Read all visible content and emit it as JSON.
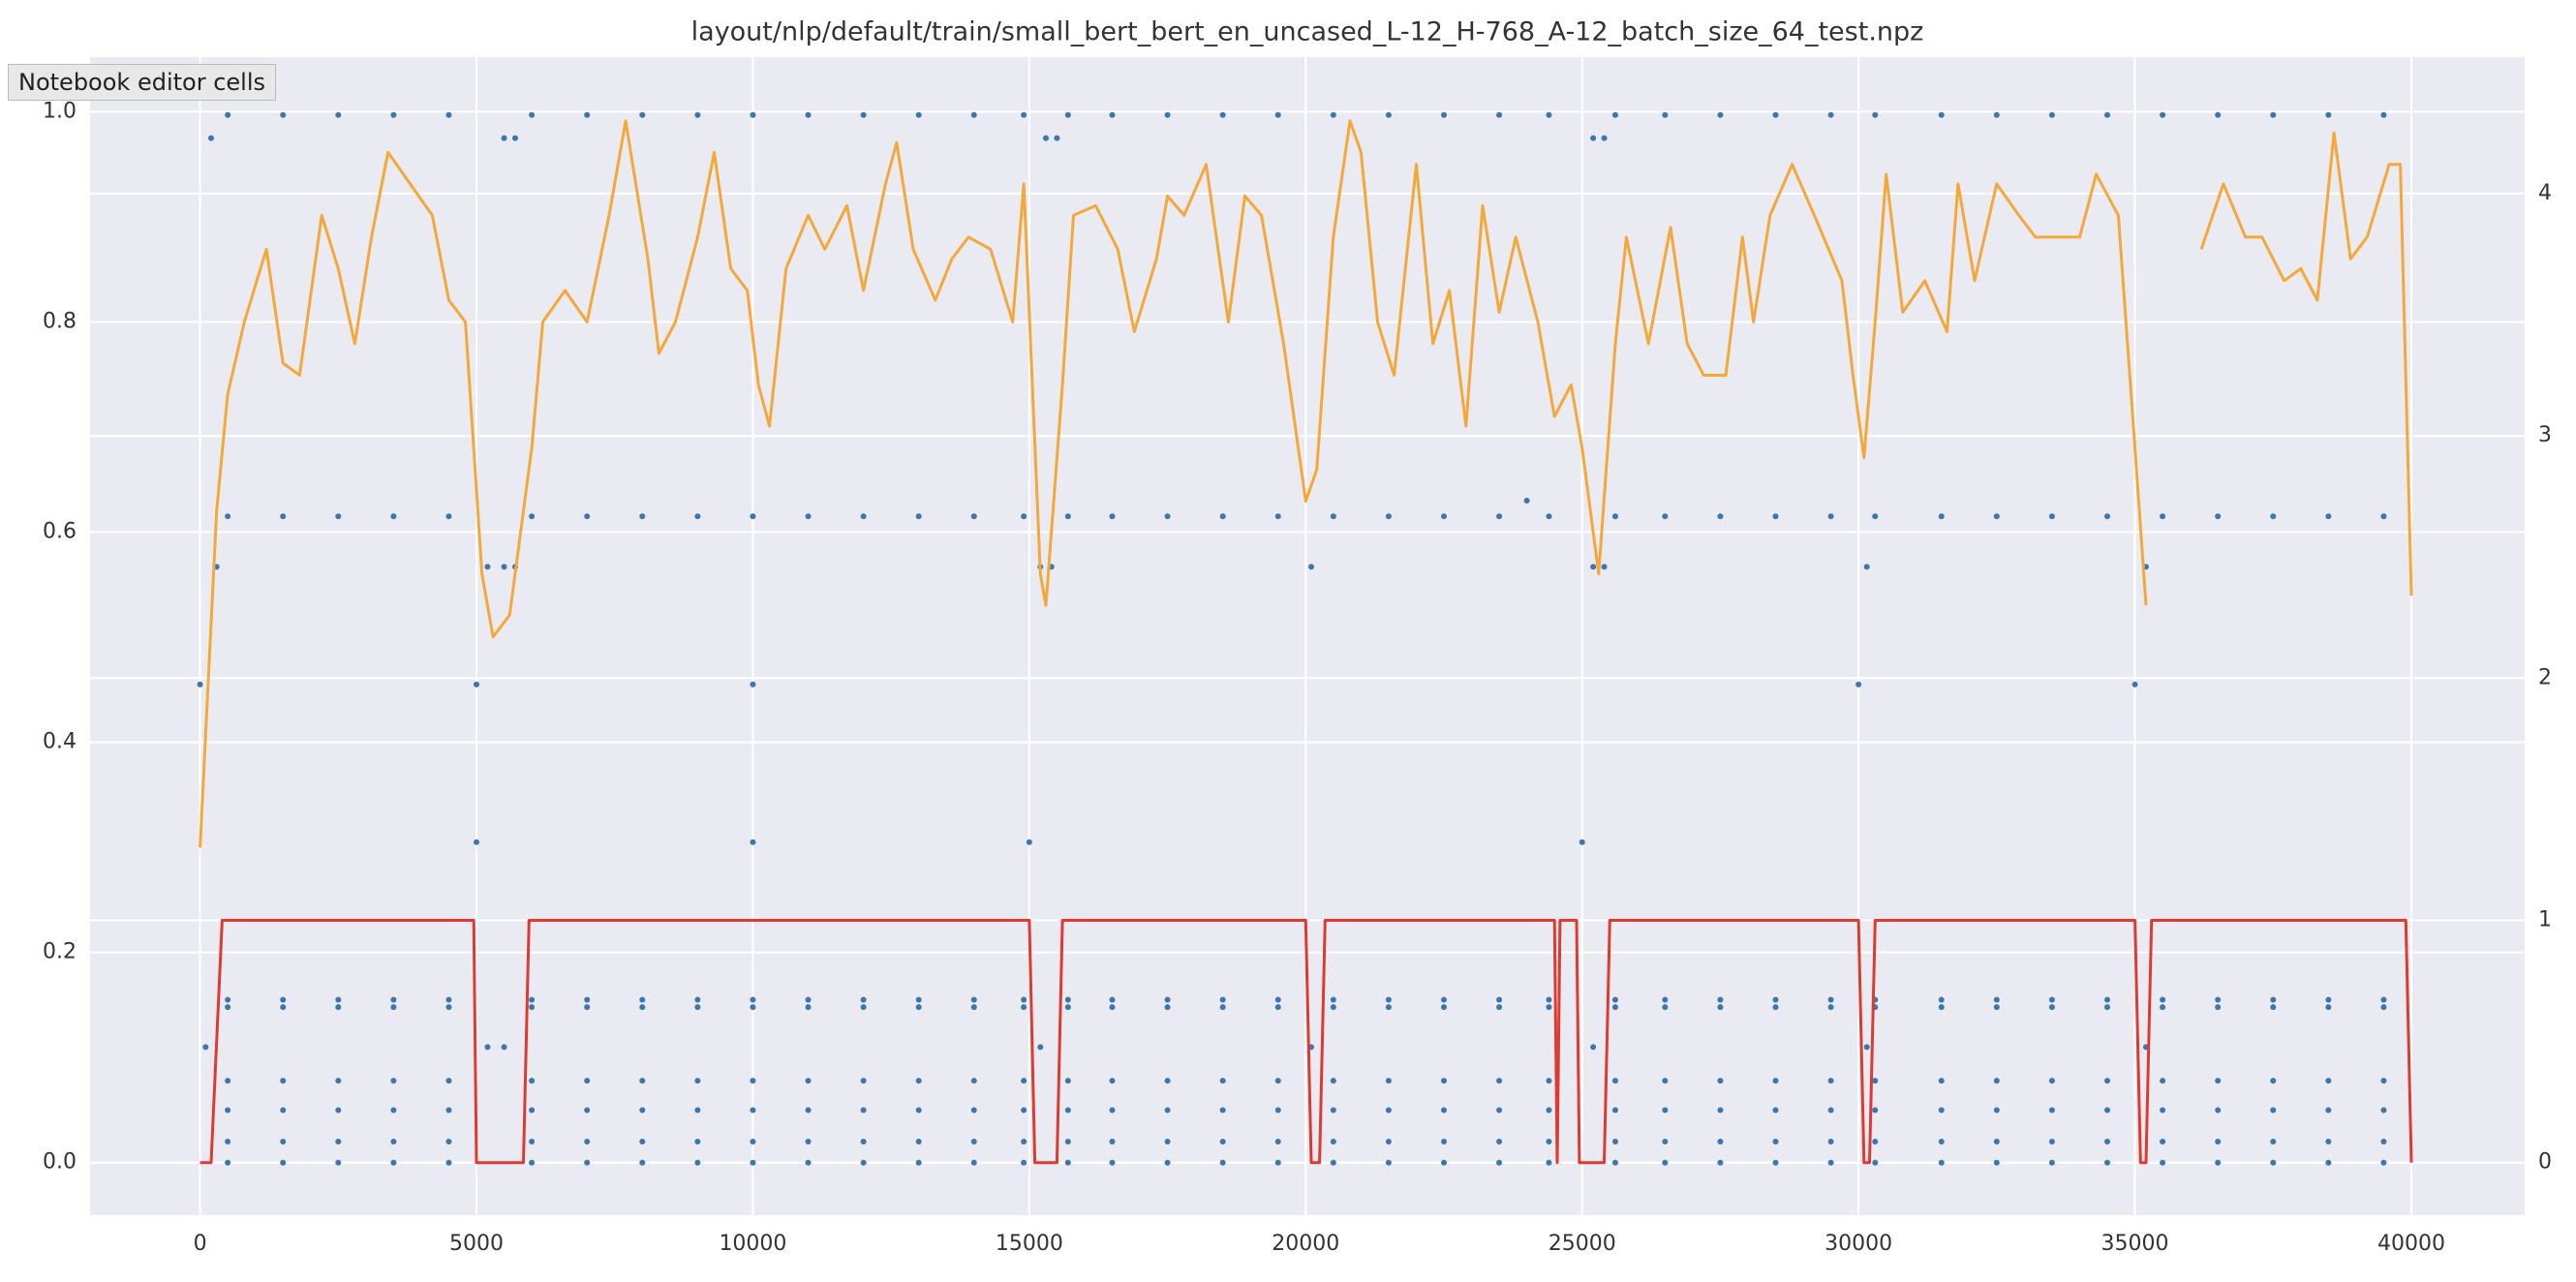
{
  "tooltip": "Notebook editor cells",
  "chart_data": {
    "type": "scatter",
    "title": "layout/nlp/default/train/small_bert_bert_en_uncased_L-12_H-768_A-12_batch_size_64_test.npz",
    "xlim": [
      -1990,
      42050
    ],
    "ylim": [
      -0.05,
      1.052
    ],
    "y2lim": [
      -0.217,
      4.563
    ],
    "xticks": [
      0,
      5000,
      10000,
      15000,
      20000,
      25000,
      30000,
      35000,
      40000
    ],
    "yticks": [
      {
        "value": 0,
        "label": "0.0"
      },
      0.2,
      0.4,
      0.6,
      0.8,
      {
        "value": 1,
        "label": "1.0"
      }
    ],
    "y2ticks": [
      0,
      1,
      2,
      3,
      4
    ],
    "grid": true,
    "series": [
      {
        "color": "#3a76b0",
        "x": [
          500,
          1500,
          2500,
          3500,
          4500,
          6000,
          7000,
          8000,
          9000,
          10000,
          11000,
          12000,
          13000,
          14000,
          14900,
          15700,
          16500,
          17500,
          18500,
          19500,
          20500,
          21500,
          22500,
          23500,
          24400,
          25600,
          26500,
          27500,
          28500,
          29500,
          30300,
          31500,
          32500,
          33500,
          34500,
          35500,
          36500,
          37500,
          38500,
          39500
        ],
        "values": [
          0.997,
          0.997,
          0.997,
          0.997,
          0.997,
          0.997,
          0.997,
          0.997,
          0.997,
          0.997,
          0.997,
          0.997,
          0.997,
          0.997,
          0.997,
          0.997,
          0.997,
          0.997,
          0.997,
          0.997,
          0.997,
          0.997,
          0.997,
          0.997,
          0.997,
          0.997,
          0.997,
          0.997,
          0.997,
          0.997,
          0.997,
          0.997,
          0.997,
          0.997,
          0.997,
          0.997,
          0.997,
          0.997,
          0.997,
          0.997
        ]
      },
      {
        "color": "#3a76b0",
        "x": [
          500,
          1500,
          2500,
          3500,
          4500,
          6000,
          7000,
          8000,
          9000,
          10000,
          11000,
          12000,
          13000,
          14000,
          14900,
          15700,
          16500,
          17500,
          18500,
          19500,
          20500,
          21500,
          22500,
          23500,
          24400,
          25600,
          26500,
          27500,
          28500,
          29500,
          30300,
          31500,
          32500,
          33500,
          34500,
          35500,
          36500,
          37500,
          38500,
          39500
        ],
        "values": [
          0.615,
          0.615,
          0.615,
          0.615,
          0.615,
          0.615,
          0.615,
          0.615,
          0.615,
          0.615,
          0.615,
          0.615,
          0.615,
          0.615,
          0.615,
          0.615,
          0.615,
          0.615,
          0.615,
          0.615,
          0.615,
          0.615,
          0.615,
          0.615,
          0.615,
          0.615,
          0.615,
          0.615,
          0.615,
          0.615,
          0.615,
          0.615,
          0.615,
          0.615,
          0.615,
          0.615,
          0.615,
          0.615,
          0.615,
          0.615
        ]
      },
      {
        "color": "#3a76b0",
        "x": [
          500,
          1500,
          2500,
          3500,
          4500,
          6000,
          7000,
          8000,
          9000,
          10000,
          11000,
          12000,
          13000,
          14000,
          14900,
          15700,
          16500,
          17500,
          18500,
          19500,
          20500,
          21500,
          22500,
          23500,
          24400,
          25600,
          26500,
          27500,
          28500,
          29500,
          30300,
          31500,
          32500,
          33500,
          34500,
          35500,
          36500,
          37500,
          38500,
          39500
        ],
        "values": [
          0.155,
          0.155,
          0.155,
          0.155,
          0.155,
          0.155,
          0.155,
          0.155,
          0.155,
          0.155,
          0.155,
          0.155,
          0.155,
          0.155,
          0.155,
          0.155,
          0.155,
          0.155,
          0.155,
          0.155,
          0.155,
          0.155,
          0.155,
          0.155,
          0.155,
          0.155,
          0.155,
          0.155,
          0.155,
          0.155,
          0.155,
          0.155,
          0.155,
          0.155,
          0.155,
          0.155,
          0.155,
          0.155,
          0.155,
          0.155
        ]
      },
      {
        "color": "#3a76b0",
        "x": [
          500,
          1500,
          2500,
          3500,
          4500,
          6000,
          7000,
          8000,
          9000,
          10000,
          11000,
          12000,
          13000,
          14000,
          14900,
          15700,
          16500,
          17500,
          18500,
          19500,
          20500,
          21500,
          22500,
          23500,
          24400,
          25600,
          26500,
          27500,
          28500,
          29500,
          30300,
          31500,
          32500,
          33500,
          34500,
          35500,
          36500,
          37500,
          38500,
          39500
        ],
        "values": [
          0.148,
          0.148,
          0.148,
          0.148,
          0.148,
          0.148,
          0.148,
          0.148,
          0.148,
          0.148,
          0.148,
          0.148,
          0.148,
          0.148,
          0.148,
          0.148,
          0.148,
          0.148,
          0.148,
          0.148,
          0.148,
          0.148,
          0.148,
          0.148,
          0.148,
          0.148,
          0.148,
          0.148,
          0.148,
          0.148,
          0.148,
          0.148,
          0.148,
          0.148,
          0.148,
          0.148,
          0.148,
          0.148,
          0.148,
          0.148
        ]
      },
      {
        "color": "#3a76b0",
        "x": [
          500,
          1500,
          2500,
          3500,
          4500,
          6000,
          7000,
          8000,
          9000,
          10000,
          11000,
          12000,
          13000,
          14000,
          14900,
          15700,
          16500,
          17500,
          18500,
          19500,
          20500,
          21500,
          22500,
          23500,
          24400,
          25600,
          26500,
          27500,
          28500,
          29500,
          30300,
          31500,
          32500,
          33500,
          34500,
          35500,
          36500,
          37500,
          38500,
          39500
        ],
        "values": [
          0.078,
          0.078,
          0.078,
          0.078,
          0.078,
          0.078,
          0.078,
          0.078,
          0.078,
          0.078,
          0.078,
          0.078,
          0.078,
          0.078,
          0.078,
          0.078,
          0.078,
          0.078,
          0.078,
          0.078,
          0.078,
          0.078,
          0.078,
          0.078,
          0.078,
          0.078,
          0.078,
          0.078,
          0.078,
          0.078,
          0.078,
          0.078,
          0.078,
          0.078,
          0.078,
          0.078,
          0.078,
          0.078,
          0.078,
          0.078
        ]
      },
      {
        "color": "#3a76b0",
        "x": [
          500,
          1500,
          2500,
          3500,
          4500,
          6000,
          7000,
          8000,
          9000,
          10000,
          11000,
          12000,
          13000,
          14000,
          14900,
          15700,
          16500,
          17500,
          18500,
          19500,
          20500,
          21500,
          22500,
          23500,
          24400,
          25600,
          26500,
          27500,
          28500,
          29500,
          30300,
          31500,
          32500,
          33500,
          34500,
          35500,
          36500,
          37500,
          38500,
          39500
        ],
        "values": [
          0.05,
          0.05,
          0.05,
          0.05,
          0.05,
          0.05,
          0.05,
          0.05,
          0.05,
          0.05,
          0.05,
          0.05,
          0.05,
          0.05,
          0.05,
          0.05,
          0.05,
          0.05,
          0.05,
          0.05,
          0.05,
          0.05,
          0.05,
          0.05,
          0.05,
          0.05,
          0.05,
          0.05,
          0.05,
          0.05,
          0.05,
          0.05,
          0.05,
          0.05,
          0.05,
          0.05,
          0.05,
          0.05,
          0.05,
          0.05
        ]
      },
      {
        "color": "#3a76b0",
        "x": [
          500,
          1500,
          2500,
          3500,
          4500,
          6000,
          7000,
          8000,
          9000,
          10000,
          11000,
          12000,
          13000,
          14000,
          14900,
          15700,
          16500,
          17500,
          18500,
          19500,
          20500,
          21500,
          22500,
          23500,
          24400,
          25600,
          26500,
          27500,
          28500,
          29500,
          30300,
          31500,
          32500,
          33500,
          34500,
          35500,
          36500,
          37500,
          38500,
          39500
        ],
        "values": [
          0.02,
          0.02,
          0.02,
          0.02,
          0.02,
          0.02,
          0.02,
          0.02,
          0.02,
          0.02,
          0.02,
          0.02,
          0.02,
          0.02,
          0.02,
          0.02,
          0.02,
          0.02,
          0.02,
          0.02,
          0.02,
          0.02,
          0.02,
          0.02,
          0.02,
          0.02,
          0.02,
          0.02,
          0.02,
          0.02,
          0.02,
          0.02,
          0.02,
          0.02,
          0.02,
          0.02,
          0.02,
          0.02,
          0.02,
          0.02
        ]
      },
      {
        "color": "#3a76b0",
        "x": [
          500,
          1500,
          2500,
          3500,
          4500,
          6000,
          7000,
          8000,
          9000,
          10000,
          11000,
          12000,
          13000,
          14000,
          14900,
          15700,
          16500,
          17500,
          18500,
          19500,
          20500,
          21500,
          22500,
          23500,
          24400,
          25600,
          26500,
          27500,
          28500,
          29500,
          30300,
          31500,
          32500,
          33500,
          34500,
          35500,
          36500,
          37500,
          38500,
          39500
        ],
        "values": [
          0,
          0,
          0,
          0,
          0,
          0,
          0,
          0,
          0,
          0,
          0,
          0,
          0,
          0,
          0,
          0,
          0,
          0,
          0,
          0,
          0,
          0,
          0,
          0,
          0,
          0,
          0,
          0,
          0,
          0,
          0,
          0,
          0,
          0,
          0,
          0,
          0,
          0,
          0,
          0
        ]
      },
      {
        "color": "#3a76b0",
        "x": [
          200,
          5500,
          5700,
          15300,
          15500,
          25200,
          25400,
          300,
          5200,
          5500,
          5700,
          15200,
          15400,
          20100,
          25200,
          25400,
          30150,
          35200,
          100,
          5200,
          5500,
          15200,
          20100,
          25200,
          30150,
          35200
        ],
        "values": [
          0.975,
          0.975,
          0.975,
          0.975,
          0.975,
          0.975,
          0.975,
          0.567,
          0.567,
          0.567,
          0.567,
          0.567,
          0.567,
          0.567,
          0.567,
          0.567,
          0.567,
          0.567,
          0.11,
          0.11,
          0.11,
          0.11,
          0.11,
          0.11,
          0.11,
          0.11
        ]
      },
      {
        "color": "#3a76b0",
        "x": [
          0,
          5000,
          5000,
          10000,
          10000,
          15000,
          25000,
          30000,
          35000,
          24000
        ],
        "values": [
          0.455,
          0.455,
          0.305,
          0.455,
          0.305,
          0.305,
          0.305,
          0.455,
          0.455,
          0.63
        ]
      },
      {
        "type": "line",
        "axis": "y2",
        "color": "#f5a83a",
        "x": [
          0,
          300,
          500,
          800,
          1200,
          1500,
          1800,
          2200,
          2500,
          2800,
          3100,
          3400,
          3800,
          4200,
          4500,
          4800,
          5100,
          5300,
          5600,
          6000,
          6200,
          6600,
          7000,
          7400,
          7700,
          8100,
          8300,
          8600,
          9000,
          9300,
          9600,
          9900,
          10100,
          10300,
          10600,
          11000,
          11300,
          11700,
          12000,
          12400,
          12600,
          12900,
          13300,
          13600,
          13900,
          14300,
          14700,
          14900,
          15200,
          15300,
          15600,
          15800,
          16200,
          16600,
          16900,
          17300,
          17500,
          17800,
          18200,
          18600,
          18900,
          19200,
          19600,
          20000,
          20200,
          20500,
          20800,
          21000,
          21300,
          21600,
          22000,
          22300,
          22600,
          22900,
          23200,
          23500,
          23800,
          24200,
          24500,
          24800,
          25000,
          25300,
          25600,
          25800,
          26200,
          26600,
          26900,
          27200,
          27600,
          27900,
          28100,
          28400,
          28800,
          29200,
          29700,
          29900,
          30100,
          30300,
          30500,
          30800,
          31200,
          31600,
          31800,
          32100,
          32500,
          32900,
          33200,
          33600,
          34000,
          34300,
          34700,
          35000,
          35200,
          35600,
          36200,
          36600,
          37000,
          37300,
          37700,
          38000,
          38300,
          38600,
          38900,
          39200,
          39600,
          39800,
          40000
        ],
        "values": [
          1.3,
          2.69,
          3.17,
          3.47,
          3.77,
          3.3,
          3.25,
          3.91,
          3.69,
          3.38,
          3.82,
          4.17,
          4.04,
          3.91,
          3.56,
          3.47,
          2.43,
          2.17,
          2.26,
          2.95,
          3.47,
          3.6,
          3.47,
          3.91,
          4.3,
          3.73,
          3.34,
          3.47,
          3.82,
          4.17,
          3.69,
          3.6,
          3.21,
          3.04,
          3.69,
          3.91,
          3.77,
          3.95,
          3.6,
          4.04,
          4.21,
          3.77,
          3.56,
          3.73,
          3.82,
          3.77,
          3.47,
          4.04,
          2.43,
          2.3,
          3.21,
          3.91,
          3.95,
          3.77,
          3.43,
          3.73,
          3.99,
          3.91,
          4.12,
          3.47,
          3.99,
          3.91,
          3.38,
          2.73,
          2.86,
          3.82,
          4.3,
          4.17,
          3.47,
          3.25,
          4.12,
          3.38,
          3.6,
          3.04,
          3.95,
          3.51,
          3.82,
          3.47,
          3.08,
          3.21,
          2.95,
          2.43,
          3.38,
          3.82,
          3.38,
          3.86,
          3.38,
          3.25,
          3.25,
          3.82,
          3.47,
          3.91,
          4.12,
          3.91,
          3.64,
          3.25,
          2.91,
          3.47,
          4.08,
          3.51,
          3.64,
          3.43,
          4.04,
          3.64,
          4.04,
          3.91,
          3.82,
          3.82,
          3.82,
          4.08,
          3.91,
          2.95,
          2.3,
          null,
          3.77,
          4.04,
          3.82,
          3.82,
          3.64,
          3.69,
          3.56,
          4.25,
          3.73,
          3.82,
          4.12,
          4.12,
          2.34
        ]
      },
      {
        "type": "line",
        "axis": "y2",
        "color": "#e03a30",
        "x": [
          0,
          200,
          400,
          4950,
          5000,
          5850,
          5950,
          15000,
          15100,
          15500,
          15600,
          20000,
          20100,
          20250,
          20350,
          24500,
          24550,
          24600,
          24900,
          24950,
          25400,
          25500,
          30000,
          30100,
          30200,
          30300,
          35000,
          35100,
          35200,
          35300,
          39900,
          40000
        ],
        "values": [
          0,
          0,
          1,
          1,
          0,
          0,
          1,
          1,
          0,
          0,
          1,
          1,
          0,
          0,
          1,
          1,
          0,
          1,
          1,
          0,
          0,
          1,
          1,
          0,
          0,
          1,
          1,
          0,
          0,
          1,
          1,
          0
        ]
      }
    ]
  }
}
